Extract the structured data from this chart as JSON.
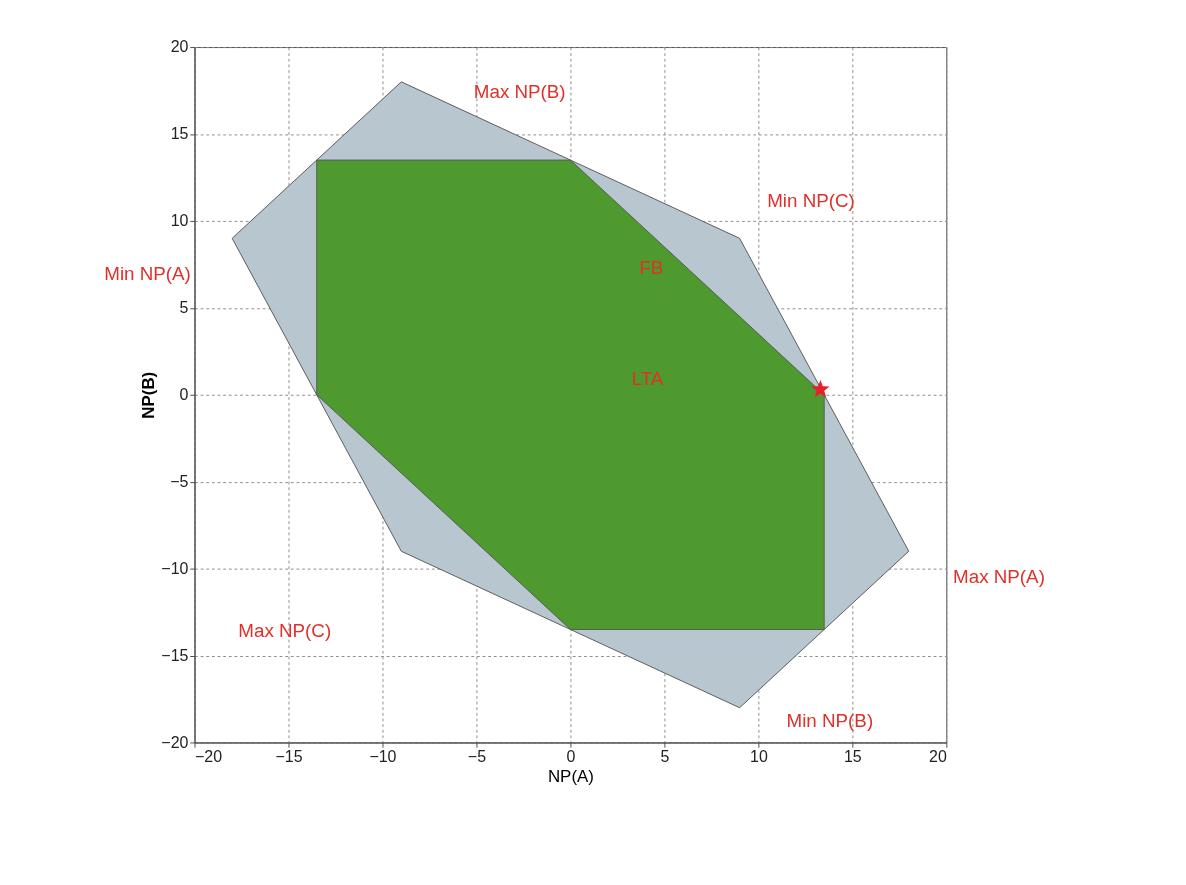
{
  "chart_data": {
    "type": "area",
    "xlabel": "NP(A)",
    "ylabel": "NP(B)",
    "xlim": [
      -20,
      20
    ],
    "ylim": [
      -20,
      20
    ],
    "xticks": [
      -20,
      -15,
      -10,
      -5,
      0,
      5,
      10,
      15,
      20
    ],
    "yticks": [
      -20,
      -15,
      -10,
      -5,
      0,
      5,
      10,
      15,
      20
    ],
    "grid": true,
    "line_style": "solid",
    "series": [
      {
        "color": "#b7c6cf",
        "x": [
          -18,
          -9,
          9,
          18,
          9,
          -9,
          -18
        ],
        "values": [
          9,
          18,
          9,
          -9,
          -18,
          -9,
          9
        ]
      },
      {
        "color": "#4e9a2f",
        "x": [
          -13.5,
          0,
          13.5,
          13.5,
          0,
          -13.5,
          -13.5
        ],
        "values": [
          13.5,
          13.5,
          0,
          -13.5,
          -13.5,
          0,
          13.5
        ]
      },
      {
        "type": "scatter",
        "marker": "star",
        "color": "#e8202a",
        "x": [
          13.3
        ],
        "values": [
          0.3
        ]
      }
    ],
    "annotations": [
      "Max NP(B)",
      "Min NP(C)",
      "Min NP(A)",
      "FB",
      "LTA",
      "Max NP(A)",
      "Max NP(C)",
      "Min NP(B)"
    ]
  }
}
